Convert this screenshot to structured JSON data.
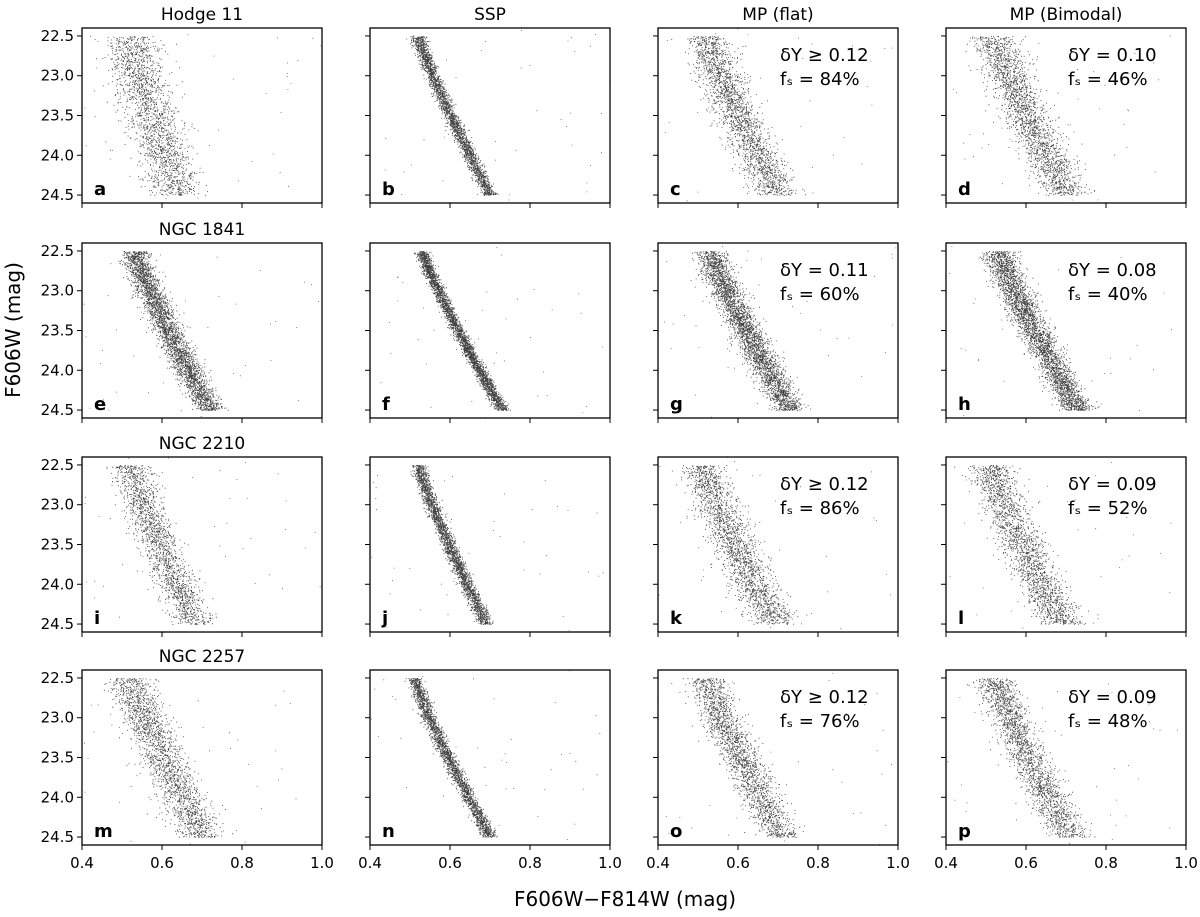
{
  "figure": {
    "xlabel": "F606W−F814W (mag)",
    "ylabel": "F606W (mag)",
    "column_titles": [
      "",
      "SSP",
      "MP (flat)",
      "MP (Bimodal)"
    ],
    "row_titles": [
      "Hodge 11",
      "NGC 1841",
      "NGC 2210",
      "NGC 2257"
    ],
    "x_ticks": [
      "0.4",
      "0.6",
      "0.8",
      "1.0"
    ],
    "y_ticks": [
      "22.5",
      "23.0",
      "23.5",
      "24.0",
      "24.5"
    ]
  },
  "chart_data": {
    "type": "scatter",
    "xlim": [
      0.4,
      1.0
    ],
    "ylim": [
      24.6,
      22.4
    ],
    "y_inverted": true,
    "grid": false,
    "marker_color": "#000000",
    "panels": [
      {
        "letter": "a",
        "row": 0,
        "col": 0,
        "ridge_top": 0.52,
        "ridge_bottom": 0.64,
        "width": 0.065,
        "density": 0.75,
        "annotation": null
      },
      {
        "letter": "b",
        "row": 0,
        "col": 1,
        "ridge_top": 0.52,
        "ridge_bottom": 0.7,
        "width": 0.018,
        "density": 1.0,
        "annotation": null
      },
      {
        "letter": "c",
        "row": 0,
        "col": 2,
        "ridge_top": 0.52,
        "ridge_bottom": 0.7,
        "width": 0.055,
        "density": 0.85,
        "annotation": {
          "dY": "δY ≥ 0.12",
          "fs": "fₛ = 84%"
        }
      },
      {
        "letter": "d",
        "row": 0,
        "col": 3,
        "ridge_top": 0.52,
        "ridge_bottom": 0.7,
        "width": 0.055,
        "density": 0.85,
        "annotation": {
          "dY": "δY = 0.10",
          "fs": "fₛ = 46%"
        }
      },
      {
        "letter": "e",
        "row": 1,
        "col": 0,
        "ridge_top": 0.53,
        "ridge_bottom": 0.72,
        "width": 0.035,
        "density": 1.3,
        "annotation": null
      },
      {
        "letter": "f",
        "row": 1,
        "col": 1,
        "ridge_top": 0.53,
        "ridge_bottom": 0.73,
        "width": 0.016,
        "density": 1.2,
        "annotation": null
      },
      {
        "letter": "g",
        "row": 1,
        "col": 2,
        "ridge_top": 0.53,
        "ridge_bottom": 0.73,
        "width": 0.04,
        "density": 1.3,
        "annotation": {
          "dY": "δY = 0.11",
          "fs": "fₛ = 60%"
        }
      },
      {
        "letter": "h",
        "row": 1,
        "col": 3,
        "ridge_top": 0.53,
        "ridge_bottom": 0.73,
        "width": 0.04,
        "density": 1.3,
        "annotation": {
          "dY": "δY = 0.08",
          "fs": "fₛ = 40%"
        }
      },
      {
        "letter": "i",
        "row": 2,
        "col": 0,
        "ridge_top": 0.52,
        "ridge_bottom": 0.68,
        "width": 0.05,
        "density": 0.7,
        "annotation": null
      },
      {
        "letter": "j",
        "row": 2,
        "col": 1,
        "ridge_top": 0.52,
        "ridge_bottom": 0.69,
        "width": 0.018,
        "density": 1.0,
        "annotation": null
      },
      {
        "letter": "k",
        "row": 2,
        "col": 2,
        "ridge_top": 0.51,
        "ridge_bottom": 0.69,
        "width": 0.055,
        "density": 0.8,
        "annotation": {
          "dY": "δY ≥ 0.12",
          "fs": "fₛ = 86%"
        }
      },
      {
        "letter": "l",
        "row": 2,
        "col": 3,
        "ridge_top": 0.51,
        "ridge_bottom": 0.69,
        "width": 0.055,
        "density": 0.8,
        "annotation": {
          "dY": "δY = 0.09",
          "fs": "fₛ = 52%"
        }
      },
      {
        "letter": "m",
        "row": 3,
        "col": 0,
        "ridge_top": 0.52,
        "ridge_bottom": 0.7,
        "width": 0.055,
        "density": 0.8,
        "annotation": null
      },
      {
        "letter": "n",
        "row": 3,
        "col": 1,
        "ridge_top": 0.51,
        "ridge_bottom": 0.7,
        "width": 0.018,
        "density": 1.0,
        "annotation": null
      },
      {
        "letter": "o",
        "row": 3,
        "col": 2,
        "ridge_top": 0.52,
        "ridge_bottom": 0.71,
        "width": 0.05,
        "density": 0.8,
        "annotation": {
          "dY": "δY ≥ 0.12",
          "fs": "fₛ = 76%"
        }
      },
      {
        "letter": "p",
        "row": 3,
        "col": 3,
        "ridge_top": 0.52,
        "ridge_bottom": 0.71,
        "width": 0.05,
        "density": 0.8,
        "annotation": {
          "dY": "δY = 0.09",
          "fs": "fₛ = 48%"
        }
      }
    ]
  }
}
